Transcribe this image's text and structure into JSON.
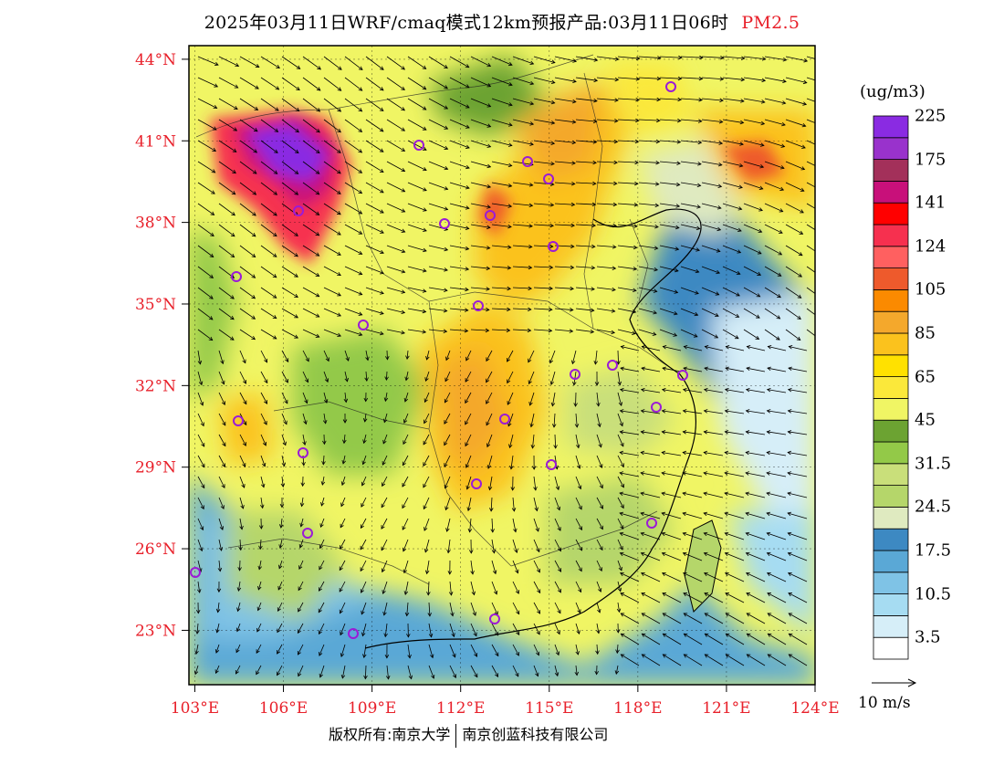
{
  "title": {
    "text": "2025年03月11日WRF/cmaq模式12km预报产品:03月11日06时",
    "pollutant": "PM2.5"
  },
  "map": {
    "lon_range": [
      102.8,
      124.0
    ],
    "lat_range": [
      21.0,
      44.5
    ],
    "lat_labels": [
      "44°N",
      "41°N",
      "38°N",
      "35°N",
      "32°N",
      "29°N",
      "26°N",
      "23°N"
    ],
    "lon_labels": [
      "103°E",
      "106°E",
      "109°E",
      "112°E",
      "115°E",
      "118°E",
      "121°E",
      "124°E"
    ],
    "station_color": "#9b1bd6"
  },
  "colorbar": {
    "unit": "(ug/m3)",
    "colors": [
      "#ffffff",
      "#d6eef8",
      "#a6dcf2",
      "#7fc3e6",
      "#5aa8d6",
      "#3d89c2",
      "#dfeac0",
      "#b5d66a",
      "#c9df7a",
      "#93c948",
      "#6ca332",
      "#f0f564",
      "#fbe83a",
      "#ffe100",
      "#fbc21d",
      "#f4a82c",
      "#fb8a00",
      "#ee5a2c",
      "#ff6060",
      "#f6304f",
      "#ff0000",
      "#c8107a",
      "#a3305a",
      "#9932cc",
      "#8a2be2"
    ],
    "labels": [
      "3.5",
      "10.5",
      "17.5",
      "24.5",
      "31.5",
      "45",
      "65",
      "85",
      "105",
      "124",
      "141",
      "175",
      "225"
    ]
  },
  "wind_reference": "10 m/s",
  "copyright": {
    "left": "版权所有:南京大学",
    "right": "南京创蓝科技有限公司"
  }
}
